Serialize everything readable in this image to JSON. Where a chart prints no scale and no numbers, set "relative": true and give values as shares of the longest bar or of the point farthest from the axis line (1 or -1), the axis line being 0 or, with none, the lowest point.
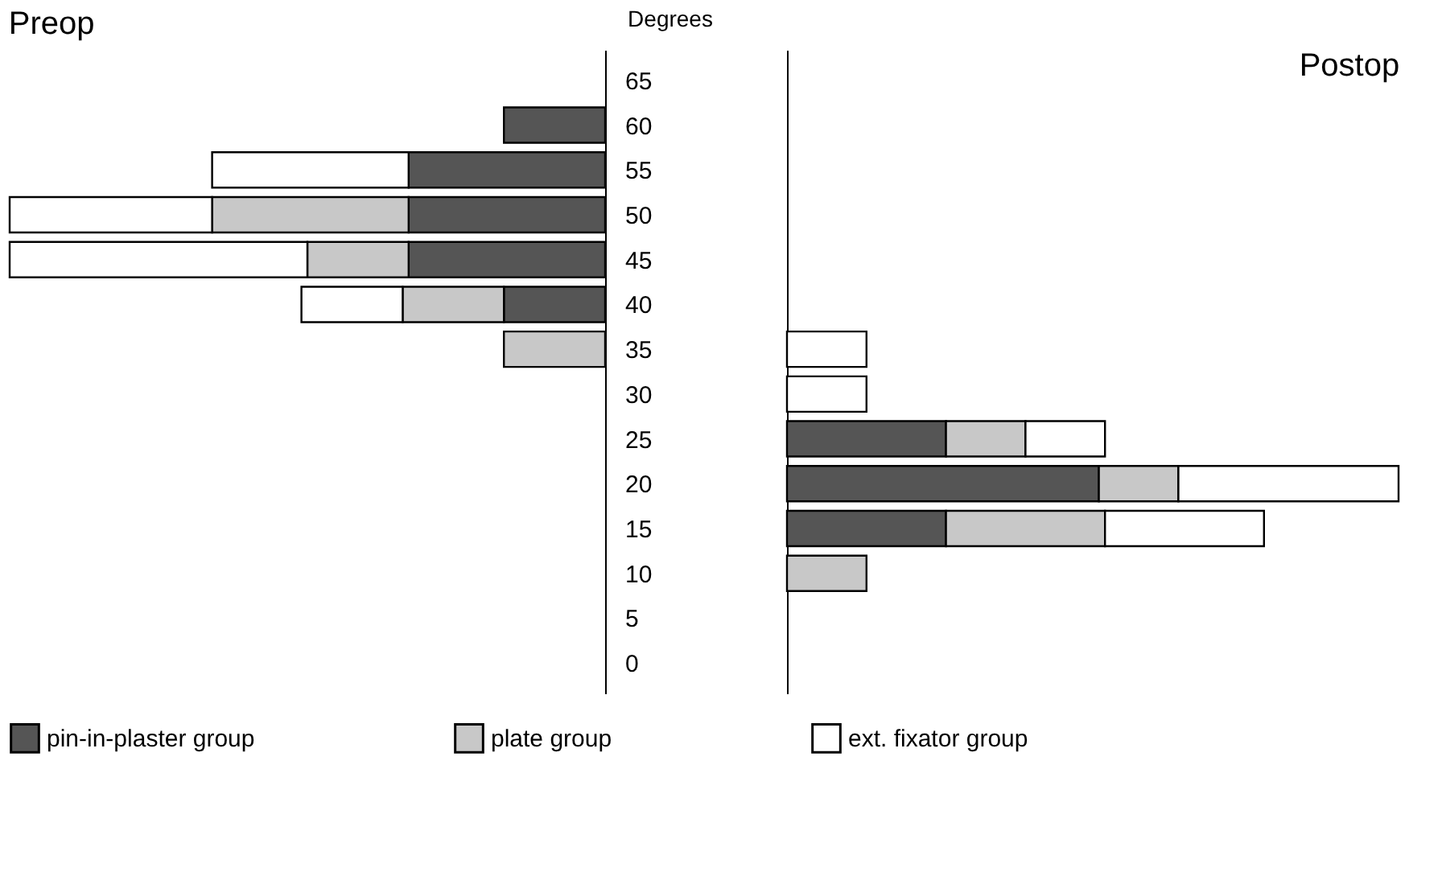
{
  "chart_data": [
    {
      "type": "bar",
      "title": "Preop",
      "orientation": "horizontal",
      "stacked": true,
      "relative": true,
      "ylabel": "Degrees",
      "tick_labels": "y",
      "legend": "bottom",
      "grid": false,
      "categories": [
        "65",
        "60",
        "55",
        "50",
        "45",
        "40",
        "35",
        "30",
        "25",
        "20",
        "15",
        "10",
        "5",
        "0"
      ],
      "series": [
        {
          "name": "pin-in-plaster group",
          "color": "#555555",
          "values": [
            null,
            0.17,
            0.33,
            0.33,
            0.33,
            0.17,
            null,
            null,
            null,
            null,
            null,
            null,
            null,
            null
          ]
        },
        {
          "name": "plate group",
          "color": "#c8c8c8",
          "values": [
            null,
            null,
            null,
            0.33,
            0.17,
            0.17,
            0.17,
            null,
            null,
            null,
            null,
            null,
            null,
            null
          ]
        },
        {
          "name": "ext. fixator group",
          "color": "#ffffff",
          "values": [
            null,
            null,
            0.33,
            0.34,
            0.5,
            0.17,
            null,
            null,
            null,
            null,
            null,
            null,
            null,
            null
          ]
        }
      ]
    },
    {
      "type": "bar",
      "title": "Postop",
      "orientation": "horizontal",
      "stacked": true,
      "relative": true,
      "tick_labels": false,
      "grid": false,
      "categories": [
        "65",
        "60",
        "55",
        "50",
        "45",
        "40",
        "35",
        "30",
        "25",
        "20",
        "15",
        "10",
        "5",
        "0"
      ],
      "series": [
        {
          "name": "pin-in-plaster group",
          "color": "#555555",
          "values": [
            null,
            null,
            null,
            null,
            null,
            null,
            null,
            null,
            0.26,
            0.51,
            0.26,
            null,
            null,
            null
          ]
        },
        {
          "name": "plate group",
          "color": "#c8c8c8",
          "values": [
            null,
            null,
            null,
            null,
            null,
            null,
            null,
            null,
            0.13,
            0.13,
            0.26,
            0.13,
            null,
            null
          ]
        },
        {
          "name": "ext. fixator group",
          "color": "#ffffff",
          "values": [
            null,
            null,
            null,
            null,
            null,
            null,
            0.13,
            0.13,
            0.13,
            0.36,
            0.26,
            null,
            null,
            null
          ]
        }
      ]
    }
  ]
}
